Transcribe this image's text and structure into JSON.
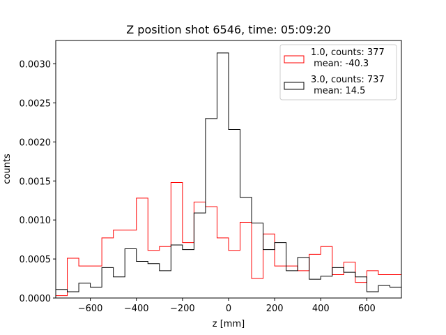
{
  "chart_data": {
    "type": "histogram",
    "title": "Z position shot 6546, time: 05:09:20",
    "xlabel": "z [mm]",
    "ylabel": "counts",
    "xlim": [
      -750,
      750
    ],
    "ylim": [
      0,
      0.0033
    ],
    "xticks": [
      -600,
      -400,
      -200,
      0,
      200,
      400,
      600
    ],
    "xtick_labels": [
      "−600",
      "−400",
      "−200",
      "0",
      "200",
      "400",
      "600"
    ],
    "yticks": [
      0,
      0.0005,
      0.001,
      0.0015,
      0.002,
      0.0025,
      0.003
    ],
    "ytick_labels": [
      "0.0000",
      "0.0005",
      "0.0010",
      "0.0015",
      "0.0020",
      "0.0025",
      "0.0030"
    ],
    "legend_position": "top-right",
    "bin_edges": [
      -750,
      -700,
      -650,
      -600,
      -550,
      -500,
      -450,
      -400,
      -350,
      -300,
      -250,
      -200,
      -150,
      -100,
      -50,
      0,
      50,
      100,
      150,
      200,
      250,
      300,
      350,
      400,
      450,
      500,
      550,
      600,
      650,
      700,
      750
    ],
    "series": [
      {
        "name": "1.0, counts: 377",
        "name_line2": " mean: -40.3",
        "color": "#ff0000",
        "values": [
          3e-05,
          0.00051,
          0.00041,
          0.00041,
          0.00077,
          0.00087,
          0.00087,
          0.00128,
          0.00061,
          0.00066,
          0.00148,
          0.00071,
          0.00123,
          0.00117,
          0.00077,
          0.00061,
          0.00097,
          0.00025,
          0.00082,
          0.00041,
          0.00041,
          0.00035,
          0.00056,
          0.00066,
          0.0003,
          0.00046,
          0.0002,
          0.00035,
          0.0003,
          0.0003
        ]
      },
      {
        "name": "3.0, counts: 737",
        "name_line2": " mean: 14.5",
        "color": "#000000",
        "values": [
          0.00011,
          8e-05,
          0.00019,
          0.00014,
          0.00039,
          0.00027,
          0.00063,
          0.00047,
          0.00044,
          0.00035,
          0.00068,
          0.00062,
          0.00109,
          0.0023,
          0.00314,
          0.00216,
          0.00129,
          0.00096,
          0.00062,
          0.00071,
          0.00035,
          0.00052,
          0.00024,
          0.00028,
          0.00039,
          0.00033,
          0.00027,
          8e-05,
          0.00016,
          0.00014
        ]
      }
    ]
  }
}
